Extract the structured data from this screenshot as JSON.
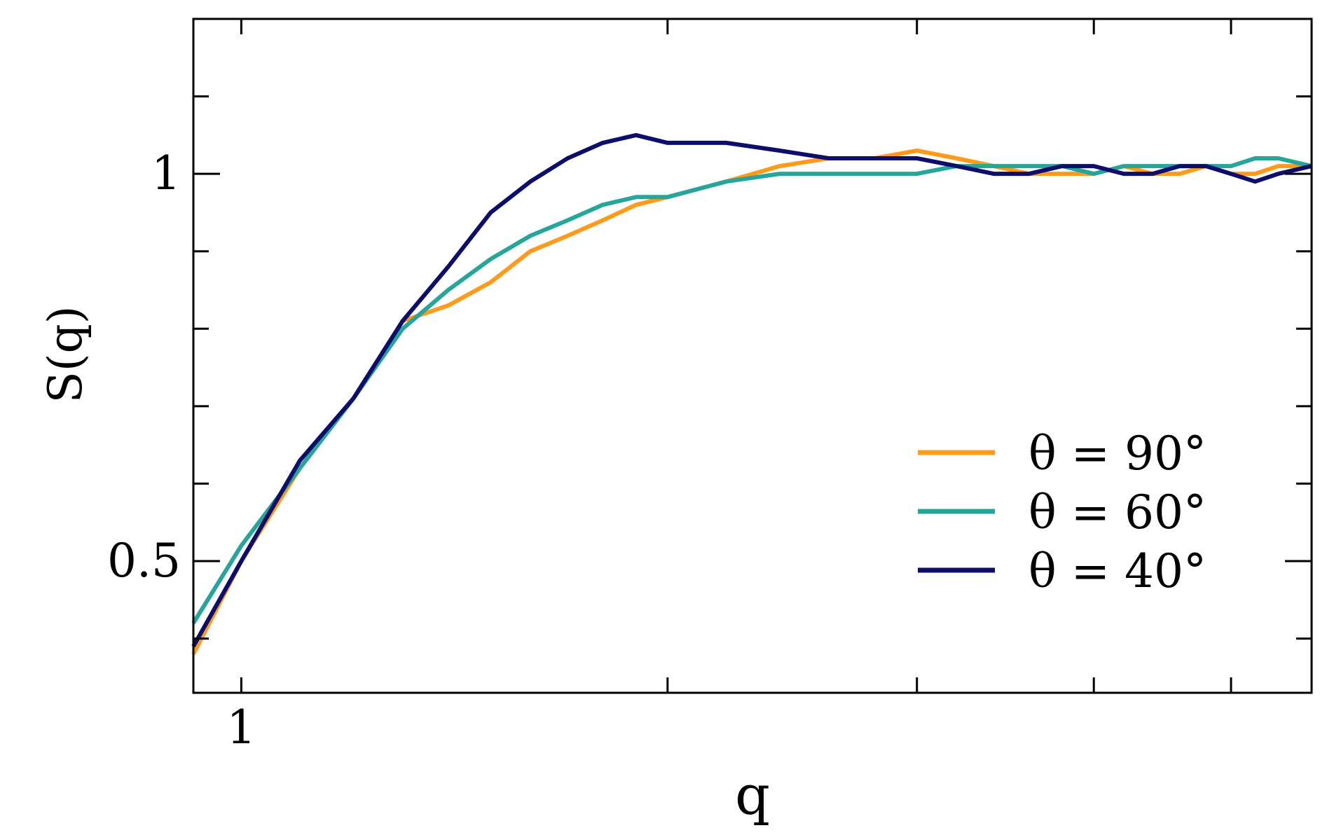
{
  "chart_data": {
    "type": "line",
    "title": "",
    "xlabel": "q",
    "ylabel": "S(q)",
    "x_scale": "log",
    "xlim": [
      0.925,
      5.7
    ],
    "ylim": [
      0.33,
      1.2
    ],
    "x_major_ticks": [
      1
    ],
    "x_tick_labels": [
      "1"
    ],
    "x_minor_ticks": [
      2,
      3,
      4,
      5
    ],
    "y_major_ticks": [
      0.5,
      1
    ],
    "y_tick_labels": [
      "0.5",
      "1"
    ],
    "y_minor_ticks": [
      0.4,
      0.6,
      0.7,
      0.8,
      0.9,
      1.1
    ],
    "grid": false,
    "legend_position": "lower-right",
    "series": [
      {
        "name": "θ = 90°",
        "color": "#FF9A1A",
        "x": [
          0.925,
          1.0,
          1.1,
          1.2,
          1.3,
          1.4,
          1.5,
          1.6,
          1.7,
          1.8,
          1.9,
          2.0,
          2.2,
          2.4,
          2.6,
          2.8,
          3.0,
          3.2,
          3.4,
          3.6,
          3.8,
          4.0,
          4.2,
          4.4,
          4.6,
          4.8,
          5.0,
          5.2,
          5.4,
          5.7
        ],
        "y": [
          0.38,
          0.5,
          0.62,
          0.71,
          0.81,
          0.83,
          0.86,
          0.9,
          0.92,
          0.94,
          0.96,
          0.97,
          0.99,
          1.01,
          1.02,
          1.02,
          1.03,
          1.02,
          1.01,
          1.0,
          1.0,
          1.0,
          1.01,
          1.0,
          1.0,
          1.01,
          1.0,
          1.0,
          1.01,
          1.01
        ]
      },
      {
        "name": "θ = 60°",
        "color": "#26A69A",
        "x": [
          0.925,
          1.0,
          1.1,
          1.2,
          1.3,
          1.4,
          1.5,
          1.6,
          1.7,
          1.8,
          1.9,
          2.0,
          2.2,
          2.4,
          2.6,
          2.8,
          3.0,
          3.2,
          3.4,
          3.6,
          3.8,
          4.0,
          4.2,
          4.4,
          4.6,
          4.8,
          5.0,
          5.2,
          5.4,
          5.7
        ],
        "y": [
          0.42,
          0.52,
          0.62,
          0.71,
          0.8,
          0.85,
          0.89,
          0.92,
          0.94,
          0.96,
          0.97,
          0.97,
          0.99,
          1.0,
          1.0,
          1.0,
          1.0,
          1.01,
          1.01,
          1.01,
          1.01,
          1.0,
          1.01,
          1.01,
          1.01,
          1.01,
          1.01,
          1.02,
          1.02,
          1.01
        ]
      },
      {
        "name": "θ = 40°",
        "color": "#0D0D6B",
        "x": [
          0.925,
          1.0,
          1.1,
          1.2,
          1.3,
          1.4,
          1.5,
          1.6,
          1.7,
          1.8,
          1.9,
          2.0,
          2.2,
          2.4,
          2.6,
          2.8,
          3.0,
          3.2,
          3.4,
          3.6,
          3.8,
          4.0,
          4.2,
          4.4,
          4.6,
          4.8,
          5.0,
          5.2,
          5.4,
          5.7
        ],
        "y": [
          0.39,
          0.5,
          0.63,
          0.71,
          0.81,
          0.88,
          0.95,
          0.99,
          1.02,
          1.04,
          1.05,
          1.04,
          1.04,
          1.03,
          1.02,
          1.02,
          1.02,
          1.01,
          1.0,
          1.0,
          1.01,
          1.01,
          1.0,
          1.0,
          1.01,
          1.01,
          1.0,
          0.99,
          1.0,
          1.01
        ]
      }
    ]
  }
}
